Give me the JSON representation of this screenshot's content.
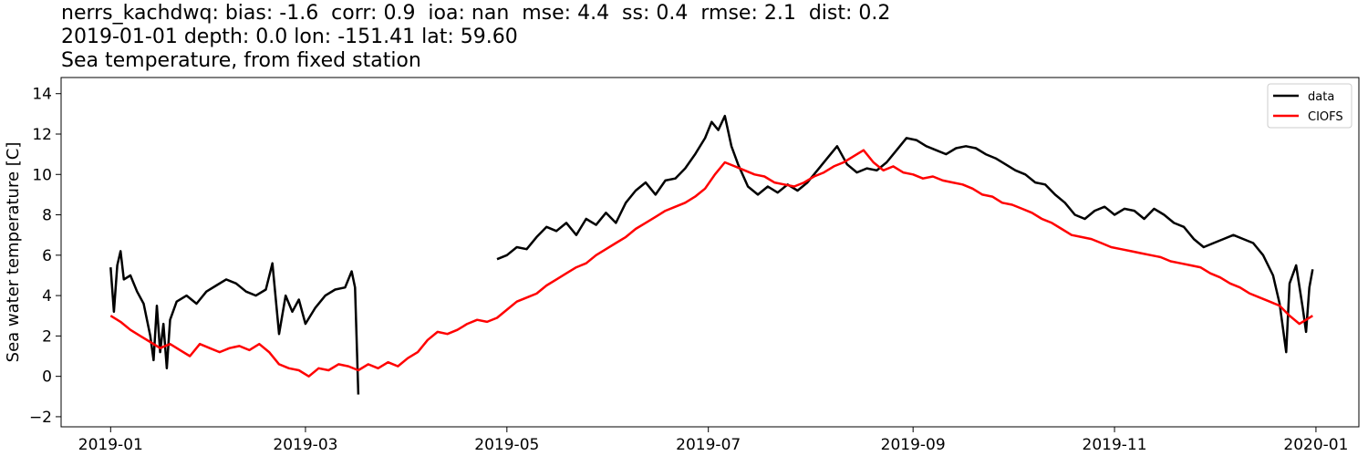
{
  "titles": {
    "line1": "nerrs_kachdwq: bias: -1.6  corr: 0.9  ioa: nan  mse: 4.4  ss: 0.4  rmse: 2.1  dist: 0.2",
    "line2": "2019-01-01 depth: 0.0 lon: -151.41 lat: 59.60",
    "line3": "Sea temperature, from fixed station"
  },
  "chart_data": {
    "type": "line",
    "title": "Sea temperature, from fixed station",
    "xlabel": "",
    "ylabel": "Sea water temperature [C]",
    "xlim": [
      "2018-12-17",
      "2020-01-14"
    ],
    "ylim": [
      -2.5,
      14.8
    ],
    "x_ticks": [
      "2019-01",
      "2019-03",
      "2019-05",
      "2019-07",
      "2019-09",
      "2019-11",
      "2020-01"
    ],
    "y_ticks": [
      -2,
      0,
      2,
      4,
      6,
      8,
      10,
      12,
      14
    ],
    "grid": false,
    "legend_position": "top-right",
    "series": [
      {
        "name": "data",
        "color": "#000000",
        "segments": [
          [
            [
              "2019-01-01",
              5.4
            ],
            [
              "2019-01-02",
              3.2
            ],
            [
              "2019-01-03",
              5.5
            ],
            [
              "2019-01-04",
              6.2
            ],
            [
              "2019-01-05",
              4.8
            ],
            [
              "2019-01-07",
              5.0
            ],
            [
              "2019-01-09",
              4.2
            ],
            [
              "2019-01-11",
              3.6
            ],
            [
              "2019-01-13",
              2.0
            ],
            [
              "2019-01-14",
              0.8
            ],
            [
              "2019-01-15",
              3.5
            ],
            [
              "2019-01-16",
              1.2
            ],
            [
              "2019-01-17",
              2.6
            ],
            [
              "2019-01-18",
              0.4
            ],
            [
              "2019-01-19",
              2.8
            ],
            [
              "2019-01-21",
              3.7
            ],
            [
              "2019-01-24",
              4.0
            ],
            [
              "2019-01-27",
              3.6
            ],
            [
              "2019-01-30",
              4.2
            ],
            [
              "2019-02-02",
              4.5
            ],
            [
              "2019-02-05",
              4.8
            ],
            [
              "2019-02-08",
              4.6
            ],
            [
              "2019-02-11",
              4.2
            ],
            [
              "2019-02-14",
              4.0
            ],
            [
              "2019-02-17",
              4.3
            ],
            [
              "2019-02-19",
              5.6
            ],
            [
              "2019-02-21",
              2.1
            ],
            [
              "2019-02-23",
              4.0
            ],
            [
              "2019-02-25",
              3.2
            ],
            [
              "2019-02-27",
              3.8
            ],
            [
              "2019-03-01",
              2.6
            ],
            [
              "2019-03-04",
              3.4
            ],
            [
              "2019-03-07",
              4.0
            ],
            [
              "2019-03-10",
              4.3
            ],
            [
              "2019-03-13",
              4.4
            ],
            [
              "2019-03-15",
              5.2
            ],
            [
              "2019-03-16",
              4.4
            ],
            [
              "2019-03-17",
              -0.9
            ]
          ],
          [
            [
              "2019-04-28",
              5.8
            ],
            [
              "2019-05-01",
              6.0
            ],
            [
              "2019-05-04",
              6.4
            ],
            [
              "2019-05-07",
              6.3
            ],
            [
              "2019-05-10",
              6.9
            ],
            [
              "2019-05-13",
              7.4
            ],
            [
              "2019-05-16",
              7.2
            ],
            [
              "2019-05-19",
              7.6
            ],
            [
              "2019-05-22",
              7.0
            ],
            [
              "2019-05-25",
              7.8
            ],
            [
              "2019-05-28",
              7.5
            ],
            [
              "2019-05-31",
              8.1
            ],
            [
              "2019-06-03",
              7.6
            ],
            [
              "2019-06-06",
              8.6
            ],
            [
              "2019-06-09",
              9.2
            ],
            [
              "2019-06-12",
              9.6
            ],
            [
              "2019-06-15",
              9.0
            ],
            [
              "2019-06-18",
              9.7
            ],
            [
              "2019-06-21",
              9.8
            ],
            [
              "2019-06-24",
              10.3
            ],
            [
              "2019-06-27",
              11.0
            ],
            [
              "2019-06-30",
              11.8
            ],
            [
              "2019-07-02",
              12.6
            ],
            [
              "2019-07-04",
              12.2
            ],
            [
              "2019-07-06",
              12.9
            ],
            [
              "2019-07-08",
              11.4
            ],
            [
              "2019-07-10",
              10.5
            ],
            [
              "2019-07-13",
              9.4
            ],
            [
              "2019-07-16",
              9.0
            ],
            [
              "2019-07-19",
              9.4
            ],
            [
              "2019-07-22",
              9.1
            ],
            [
              "2019-07-25",
              9.5
            ],
            [
              "2019-07-28",
              9.2
            ],
            [
              "2019-07-31",
              9.6
            ],
            [
              "2019-08-03",
              10.2
            ],
            [
              "2019-08-06",
              10.8
            ],
            [
              "2019-08-09",
              11.4
            ],
            [
              "2019-08-12",
              10.5
            ],
            [
              "2019-08-15",
              10.1
            ],
            [
              "2019-08-18",
              10.3
            ],
            [
              "2019-08-21",
              10.2
            ],
            [
              "2019-08-24",
              10.6
            ],
            [
              "2019-08-27",
              11.2
            ],
            [
              "2019-08-30",
              11.8
            ],
            [
              "2019-09-02",
              11.7
            ],
            [
              "2019-09-05",
              11.4
            ],
            [
              "2019-09-08",
              11.2
            ],
            [
              "2019-09-11",
              11.0
            ],
            [
              "2019-09-14",
              11.3
            ],
            [
              "2019-09-17",
              11.4
            ],
            [
              "2019-09-20",
              11.3
            ],
            [
              "2019-09-23",
              11.0
            ],
            [
              "2019-09-26",
              10.8
            ],
            [
              "2019-09-29",
              10.5
            ],
            [
              "2019-10-02",
              10.2
            ],
            [
              "2019-10-05",
              10.0
            ],
            [
              "2019-10-08",
              9.6
            ],
            [
              "2019-10-11",
              9.5
            ],
            [
              "2019-10-14",
              9.0
            ],
            [
              "2019-10-17",
              8.6
            ],
            [
              "2019-10-20",
              8.0
            ],
            [
              "2019-10-23",
              7.8
            ],
            [
              "2019-10-26",
              8.2
            ],
            [
              "2019-10-29",
              8.4
            ],
            [
              "2019-11-01",
              8.0
            ],
            [
              "2019-11-04",
              8.3
            ],
            [
              "2019-11-07",
              8.2
            ],
            [
              "2019-11-10",
              7.8
            ],
            [
              "2019-11-13",
              8.3
            ],
            [
              "2019-11-16",
              8.0
            ],
            [
              "2019-11-19",
              7.6
            ],
            [
              "2019-11-22",
              7.4
            ],
            [
              "2019-11-25",
              6.8
            ],
            [
              "2019-11-28",
              6.4
            ],
            [
              "2019-12-01",
              6.6
            ],
            [
              "2019-12-04",
              6.8
            ],
            [
              "2019-12-07",
              7.0
            ],
            [
              "2019-12-10",
              6.8
            ],
            [
              "2019-12-13",
              6.6
            ],
            [
              "2019-12-16",
              6.0
            ],
            [
              "2019-12-19",
              5.0
            ],
            [
              "2019-12-21",
              3.6
            ],
            [
              "2019-12-23",
              1.2
            ],
            [
              "2019-12-24",
              4.6
            ],
            [
              "2019-12-26",
              5.5
            ],
            [
              "2019-12-28",
              3.4
            ],
            [
              "2019-12-29",
              2.2
            ],
            [
              "2019-12-30",
              4.4
            ],
            [
              "2019-12-31",
              5.3
            ]
          ]
        ]
      },
      {
        "name": "CIOFS",
        "color": "#ff0000",
        "segments": [
          [
            [
              "2019-01-01",
              3.0
            ],
            [
              "2019-01-04",
              2.7
            ],
            [
              "2019-01-07",
              2.3
            ],
            [
              "2019-01-10",
              2.0
            ],
            [
              "2019-01-13",
              1.7
            ],
            [
              "2019-01-16",
              1.4
            ],
            [
              "2019-01-19",
              1.6
            ],
            [
              "2019-01-22",
              1.3
            ],
            [
              "2019-01-25",
              1.0
            ],
            [
              "2019-01-28",
              1.6
            ],
            [
              "2019-01-31",
              1.4
            ],
            [
              "2019-02-03",
              1.2
            ],
            [
              "2019-02-06",
              1.4
            ],
            [
              "2019-02-09",
              1.5
            ],
            [
              "2019-02-12",
              1.3
            ],
            [
              "2019-02-15",
              1.6
            ],
            [
              "2019-02-18",
              1.2
            ],
            [
              "2019-02-21",
              0.6
            ],
            [
              "2019-02-24",
              0.4
            ],
            [
              "2019-02-27",
              0.3
            ],
            [
              "2019-03-02",
              0.0
            ],
            [
              "2019-03-05",
              0.4
            ],
            [
              "2019-03-08",
              0.3
            ],
            [
              "2019-03-11",
              0.6
            ],
            [
              "2019-03-14",
              0.5
            ],
            [
              "2019-03-17",
              0.3
            ],
            [
              "2019-03-20",
              0.6
            ],
            [
              "2019-03-23",
              0.4
            ],
            [
              "2019-03-26",
              0.7
            ],
            [
              "2019-03-29",
              0.5
            ],
            [
              "2019-04-01",
              0.9
            ],
            [
              "2019-04-04",
              1.2
            ],
            [
              "2019-04-07",
              1.8
            ],
            [
              "2019-04-10",
              2.2
            ],
            [
              "2019-04-13",
              2.1
            ],
            [
              "2019-04-16",
              2.3
            ],
            [
              "2019-04-19",
              2.6
            ],
            [
              "2019-04-22",
              2.8
            ],
            [
              "2019-04-25",
              2.7
            ],
            [
              "2019-04-28",
              2.9
            ],
            [
              "2019-05-01",
              3.3
            ],
            [
              "2019-05-04",
              3.7
            ],
            [
              "2019-05-07",
              3.9
            ],
            [
              "2019-05-10",
              4.1
            ],
            [
              "2019-05-13",
              4.5
            ],
            [
              "2019-05-16",
              4.8
            ],
            [
              "2019-05-19",
              5.1
            ],
            [
              "2019-05-22",
              5.4
            ],
            [
              "2019-05-25",
              5.6
            ],
            [
              "2019-05-28",
              6.0
            ],
            [
              "2019-05-31",
              6.3
            ],
            [
              "2019-06-03",
              6.6
            ],
            [
              "2019-06-06",
              6.9
            ],
            [
              "2019-06-09",
              7.3
            ],
            [
              "2019-06-12",
              7.6
            ],
            [
              "2019-06-15",
              7.9
            ],
            [
              "2019-06-18",
              8.2
            ],
            [
              "2019-06-21",
              8.4
            ],
            [
              "2019-06-24",
              8.6
            ],
            [
              "2019-06-27",
              8.9
            ],
            [
              "2019-06-30",
              9.3
            ],
            [
              "2019-07-03",
              10.0
            ],
            [
              "2019-07-06",
              10.6
            ],
            [
              "2019-07-09",
              10.4
            ],
            [
              "2019-07-12",
              10.2
            ],
            [
              "2019-07-15",
              10.0
            ],
            [
              "2019-07-18",
              9.9
            ],
            [
              "2019-07-21",
              9.6
            ],
            [
              "2019-07-24",
              9.5
            ],
            [
              "2019-07-27",
              9.4
            ],
            [
              "2019-07-30",
              9.6
            ],
            [
              "2019-08-02",
              9.9
            ],
            [
              "2019-08-05",
              10.1
            ],
            [
              "2019-08-08",
              10.4
            ],
            [
              "2019-08-11",
              10.6
            ],
            [
              "2019-08-14",
              10.9
            ],
            [
              "2019-08-17",
              11.2
            ],
            [
              "2019-08-20",
              10.6
            ],
            [
              "2019-08-23",
              10.2
            ],
            [
              "2019-08-26",
              10.4
            ],
            [
              "2019-08-29",
              10.1
            ],
            [
              "2019-09-01",
              10.0
            ],
            [
              "2019-09-04",
              9.8
            ],
            [
              "2019-09-07",
              9.9
            ],
            [
              "2019-09-10",
              9.7
            ],
            [
              "2019-09-13",
              9.6
            ],
            [
              "2019-09-16",
              9.5
            ],
            [
              "2019-09-19",
              9.3
            ],
            [
              "2019-09-22",
              9.0
            ],
            [
              "2019-09-25",
              8.9
            ],
            [
              "2019-09-28",
              8.6
            ],
            [
              "2019-10-01",
              8.5
            ],
            [
              "2019-10-04",
              8.3
            ],
            [
              "2019-10-07",
              8.1
            ],
            [
              "2019-10-10",
              7.8
            ],
            [
              "2019-10-13",
              7.6
            ],
            [
              "2019-10-16",
              7.3
            ],
            [
              "2019-10-19",
              7.0
            ],
            [
              "2019-10-22",
              6.9
            ],
            [
              "2019-10-25",
              6.8
            ],
            [
              "2019-10-28",
              6.6
            ],
            [
              "2019-10-31",
              6.4
            ],
            [
              "2019-11-03",
              6.3
            ],
            [
              "2019-11-06",
              6.2
            ],
            [
              "2019-11-09",
              6.1
            ],
            [
              "2019-11-12",
              6.0
            ],
            [
              "2019-11-15",
              5.9
            ],
            [
              "2019-11-18",
              5.7
            ],
            [
              "2019-11-21",
              5.6
            ],
            [
              "2019-11-24",
              5.5
            ],
            [
              "2019-11-27",
              5.4
            ],
            [
              "2019-11-30",
              5.1
            ],
            [
              "2019-12-03",
              4.9
            ],
            [
              "2019-12-06",
              4.6
            ],
            [
              "2019-12-09",
              4.4
            ],
            [
              "2019-12-12",
              4.1
            ],
            [
              "2019-12-15",
              3.9
            ],
            [
              "2019-12-18",
              3.7
            ],
            [
              "2019-12-21",
              3.5
            ],
            [
              "2019-12-24",
              3.0
            ],
            [
              "2019-12-27",
              2.6
            ],
            [
              "2019-12-29",
              2.8
            ],
            [
              "2019-12-31",
              3.0
            ]
          ]
        ]
      }
    ]
  }
}
